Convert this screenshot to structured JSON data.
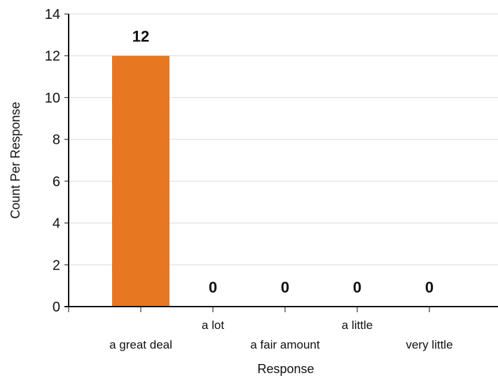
{
  "chart_data": {
    "type": "bar",
    "categories": [
      "a great deal",
      "a lot",
      "a fair amount",
      "a little",
      "very little"
    ],
    "values": [
      12,
      0,
      0,
      0,
      0
    ],
    "data_labels": [
      "12",
      "0",
      "0",
      "0",
      "0"
    ],
    "xlabel": "Response",
    "ylabel": "Count Per Response",
    "ylim": [
      0,
      14
    ],
    "yticks": [
      0,
      2,
      4,
      6,
      8,
      10,
      12,
      14
    ],
    "grid": true,
    "bar_color": "#e87722"
  }
}
